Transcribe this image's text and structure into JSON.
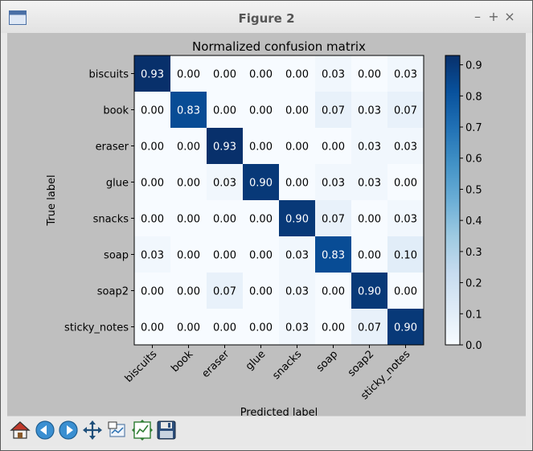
{
  "window": {
    "title": "Figure 2",
    "controls": [
      "–",
      "+",
      "×"
    ]
  },
  "toolbar": {
    "buttons": [
      {
        "name": "home-button",
        "icon": "home-icon"
      },
      {
        "name": "back-button",
        "icon": "back-arrow-icon"
      },
      {
        "name": "forward-button",
        "icon": "forward-arrow-icon"
      },
      {
        "name": "pan-button",
        "icon": "pan-arrows-icon"
      },
      {
        "name": "zoom-button",
        "icon": "zoom-rect-icon"
      },
      {
        "name": "subplots-button",
        "icon": "subplots-icon"
      },
      {
        "name": "save-button",
        "icon": "floppy-disk-icon"
      }
    ]
  },
  "chart_data": {
    "type": "heatmap",
    "title": "Normalized confusion matrix",
    "xlabel": "Predicted label",
    "ylabel": "True label",
    "x_categories": [
      "biscuits",
      "book",
      "eraser",
      "glue",
      "snacks",
      "soap",
      "soap2",
      "sticky_notes"
    ],
    "y_categories": [
      "biscuits",
      "book",
      "eraser",
      "glue",
      "snacks",
      "soap",
      "soap2",
      "sticky_notes"
    ],
    "values": [
      [
        0.93,
        0.0,
        0.0,
        0.0,
        0.0,
        0.03,
        0.0,
        0.03
      ],
      [
        0.0,
        0.83,
        0.0,
        0.0,
        0.0,
        0.07,
        0.03,
        0.07
      ],
      [
        0.0,
        0.0,
        0.93,
        0.0,
        0.0,
        0.0,
        0.03,
        0.03
      ],
      [
        0.0,
        0.0,
        0.03,
        0.9,
        0.0,
        0.03,
        0.03,
        0.0
      ],
      [
        0.0,
        0.0,
        0.0,
        0.0,
        0.9,
        0.07,
        0.0,
        0.03
      ],
      [
        0.03,
        0.0,
        0.0,
        0.0,
        0.03,
        0.83,
        0.0,
        0.1
      ],
      [
        0.0,
        0.0,
        0.07,
        0.0,
        0.03,
        0.0,
        0.9,
        0.0
      ],
      [
        0.0,
        0.0,
        0.0,
        0.0,
        0.03,
        0.0,
        0.07,
        0.9
      ]
    ],
    "colormap": "Blues",
    "colorbar": {
      "range": [
        0.0,
        0.93
      ],
      "ticks": [
        0.0,
        0.1,
        0.2,
        0.3,
        0.4,
        0.5,
        0.6,
        0.7,
        0.8,
        0.9
      ],
      "tick_labels": [
        "0.0",
        "0.1",
        "0.2",
        "0.3",
        "0.4",
        "0.5",
        "0.6",
        "0.7",
        "0.8",
        "0.9"
      ]
    },
    "x_tick_rotation": 45,
    "colors": {
      "low": "#f7fbff",
      "high": "#08306b",
      "text_light": "#ffffff",
      "text_dark": "#000000"
    }
  }
}
